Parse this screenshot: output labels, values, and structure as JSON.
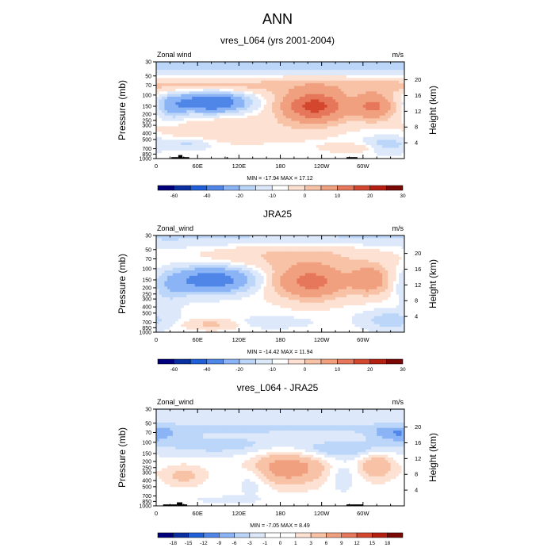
{
  "figure_title": "ANN",
  "colors": {
    "div_cb": [
      "#00007a",
      "#0a2fa0",
      "#1f5fd8",
      "#4f86e8",
      "#8ab4f5",
      "#bcd6fa",
      "#dde9fb",
      "#ffffff",
      "#fde1d3",
      "#f8c2a7",
      "#f0a07e",
      "#e6775a",
      "#d4472f",
      "#b51f12",
      "#7a0905"
    ],
    "diff_cb": [
      "#00007a",
      "#0a2fa0",
      "#1f5fd8",
      "#4f86e8",
      "#8ab4f5",
      "#bcd6fa",
      "#dde9fb",
      "#ffffff",
      "#ffffff",
      "#fde1d3",
      "#f8c2a7",
      "#f0a07e",
      "#e6775a",
      "#d4472f",
      "#b51f12",
      "#7a0905"
    ],
    "topography": "#000000"
  },
  "chart_data": [
    {
      "type": "contour",
      "title": "vres_L064 (yrs 2001-2004)",
      "left_label": "Zonal wind",
      "right_label": "m/s",
      "xlabel": "",
      "ylabel": "Pressure (mb)",
      "ylabel_right": "Height (km)",
      "x_ticks": [
        "0",
        "60E",
        "120E",
        "180",
        "120W",
        "60W"
      ],
      "x_tick_lons": [
        0,
        60,
        120,
        180,
        240,
        300
      ],
      "xlim": [
        0,
        360
      ],
      "y_ticks": [
        "30",
        "50",
        "70",
        "100",
        "150",
        "200",
        "250",
        "300",
        "400",
        "500",
        "700",
        "850",
        "1000"
      ],
      "y_tick_values": [
        30,
        50,
        70,
        100,
        150,
        200,
        250,
        300,
        400,
        500,
        700,
        850,
        1000
      ],
      "ylim": [
        30,
        1000
      ],
      "height_ticks": [
        "4",
        "8",
        "12",
        "16",
        "20"
      ],
      "height_tick_values": [
        4,
        8,
        12,
        16,
        20
      ],
      "stats_text": "MIN = -17.94  MAX = 17.12",
      "min": -17.94,
      "max": 17.12,
      "colorbar_labels": [
        "-60",
        "-40",
        "-20",
        "-10",
        "0",
        "10",
        "20",
        "30"
      ],
      "features": [
        {
          "lon": 230,
          "p": 150,
          "dlon": 45,
          "dp": 110,
          "value": 17.12
        },
        {
          "lon": 315,
          "p": 150,
          "dlon": 28,
          "dp": 90,
          "value": 11
        },
        {
          "lon": 80,
          "p": 130,
          "dlon": 45,
          "dp": 50,
          "value": -17.94
        },
        {
          "lon": 25,
          "p": 150,
          "dlon": 20,
          "dp": 80,
          "value": -6
        },
        {
          "lon": 120,
          "p": 350,
          "dlon": 110,
          "dp": 200,
          "value": 2
        },
        {
          "lon": 290,
          "p": 680,
          "dlon": 45,
          "dp": 120,
          "value": 2
        },
        {
          "lon": 335,
          "p": 600,
          "dlon": 30,
          "dp": 200,
          "value": -4
        },
        {
          "lon": 45,
          "p": 600,
          "dlon": 30,
          "dp": 130,
          "value": -3
        }
      ],
      "band": {
        "p_center": 70,
        "p_width": 25,
        "value": 3
      },
      "top_value": -4,
      "topo": [
        [
          22,
          32,
          950
        ],
        [
          32,
          38,
          880
        ],
        [
          38,
          48,
          950
        ],
        [
          102,
          104,
          950
        ],
        [
          276,
          292,
          950
        ]
      ]
    },
    {
      "type": "contour",
      "title": "JRA25",
      "left_label": "Zonal_wind",
      "right_label": "m/s",
      "xlabel": "",
      "ylabel": "Pressure (mb)",
      "ylabel_right": "Height (km)",
      "x_ticks": [
        "0",
        "60E",
        "120E",
        "180",
        "120W",
        "60W"
      ],
      "x_tick_lons": [
        0,
        60,
        120,
        180,
        240,
        300
      ],
      "xlim": [
        0,
        360
      ],
      "y_ticks": [
        "30",
        "50",
        "70",
        "100",
        "150",
        "200",
        "250",
        "300",
        "400",
        "500",
        "700",
        "850",
        "1000"
      ],
      "y_tick_values": [
        30,
        50,
        70,
        100,
        150,
        200,
        250,
        300,
        400,
        500,
        700,
        850,
        1000
      ],
      "ylim": [
        30,
        1000
      ],
      "height_ticks": [
        "4",
        "8",
        "12",
        "16",
        "20"
      ],
      "height_tick_values": [
        4,
        8,
        12,
        16,
        20
      ],
      "stats_text": "MIN = -14.42  MAX = 11.94",
      "min": -14.42,
      "max": 11.94,
      "colorbar_labels": [
        "-60",
        "-40",
        "-20",
        "-10",
        "0",
        "10",
        "20",
        "30"
      ],
      "features": [
        {
          "lon": 225,
          "p": 160,
          "dlon": 50,
          "dp": 130,
          "value": 11.94
        },
        {
          "lon": 310,
          "p": 150,
          "dlon": 28,
          "dp": 100,
          "value": 8
        },
        {
          "lon": 80,
          "p": 150,
          "dlon": 55,
          "dp": 80,
          "value": -14.42
        },
        {
          "lon": 20,
          "p": 220,
          "dlon": 25,
          "dp": 150,
          "value": -3
        },
        {
          "lon": 200,
          "p": 60,
          "dlon": 120,
          "dp": 40,
          "value": 3
        },
        {
          "lon": 340,
          "p": 650,
          "dlon": 40,
          "dp": 250,
          "value": -4
        },
        {
          "lon": 170,
          "p": 700,
          "dlon": 50,
          "dp": 150,
          "value": -2
        },
        {
          "lon": 80,
          "p": 750,
          "dlon": 40,
          "dp": 150,
          "value": 3
        }
      ],
      "band": {
        "p_center": 90,
        "p_width": 30,
        "value": 0
      },
      "top_value": -3,
      "topo": []
    },
    {
      "type": "contour",
      "title": "vres_L064 - JRA25",
      "left_label": "Zonal_wind",
      "right_label": "m/s",
      "xlabel": "",
      "ylabel": "Pressure (mb)",
      "ylabel_right": "Height (km)",
      "x_ticks": [
        "0",
        "60E",
        "120E",
        "180",
        "120W",
        "60W"
      ],
      "x_tick_lons": [
        0,
        60,
        120,
        180,
        240,
        300
      ],
      "xlim": [
        0,
        360
      ],
      "y_ticks": [
        "30",
        "50",
        "70",
        "100",
        "150",
        "200",
        "250",
        "300",
        "400",
        "500",
        "700",
        "850",
        "1000"
      ],
      "y_tick_values": [
        30,
        50,
        70,
        100,
        150,
        200,
        250,
        300,
        400,
        500,
        700,
        850,
        1000
      ],
      "ylim": [
        30,
        1000
      ],
      "height_ticks": [
        "4",
        "8",
        "12",
        "16",
        "20"
      ],
      "height_tick_values": [
        4,
        8,
        12,
        16,
        20
      ],
      "stats_text": "MIN = -7.05  MAX = 8.49",
      "min": -7.05,
      "max": 8.49,
      "colorbar_labels": [
        "-18",
        "-15",
        "-12",
        "-9",
        "-6",
        "-3",
        "-1",
        "0",
        "1",
        "3",
        "6",
        "9",
        "12",
        "15",
        "18"
      ],
      "features": [
        {
          "lon": 190,
          "p": 250,
          "dlon": 55,
          "dp": 220,
          "value": 8.49
        },
        {
          "lon": 320,
          "p": 230,
          "dlon": 25,
          "dp": 150,
          "value": 6
        },
        {
          "lon": 40,
          "p": 330,
          "dlon": 30,
          "dp": 150,
          "value": 4
        },
        {
          "lon": 100,
          "p": 110,
          "dlon": 130,
          "dp": 60,
          "value": -4
        },
        {
          "lon": 270,
          "p": 130,
          "dlon": 60,
          "dp": 50,
          "value": -5
        },
        {
          "lon": 140,
          "p": 400,
          "dlon": 25,
          "dp": 300,
          "value": -3
        },
        {
          "lon": 270,
          "p": 350,
          "dlon": 20,
          "dp": 250,
          "value": -3
        },
        {
          "lon": 350,
          "p": 75,
          "dlon": 40,
          "dp": 25,
          "value": -7.05
        },
        {
          "lon": 100,
          "p": 800,
          "dlon": 50,
          "dp": 120,
          "value": -2
        }
      ],
      "band": {
        "p_center": 60,
        "p_width": 15,
        "value": -3
      },
      "top_value": -3,
      "topo": [
        [
          10,
          30,
          950
        ],
        [
          30,
          38,
          880
        ],
        [
          38,
          45,
          950
        ],
        [
          276,
          300,
          950
        ]
      ]
    }
  ]
}
